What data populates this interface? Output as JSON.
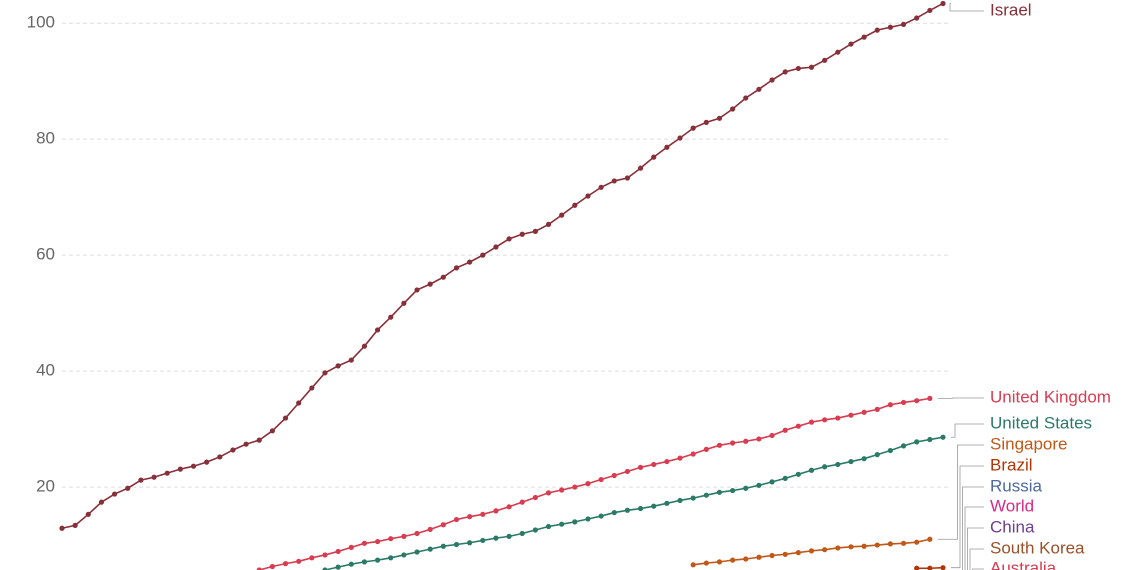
{
  "chart_data": {
    "type": "line",
    "categories": [
      null,
      null,
      null,
      null,
      null,
      null,
      null,
      null,
      null,
      null,
      null,
      null,
      null,
      null,
      null,
      null,
      null,
      null,
      null,
      null,
      null,
      null,
      null,
      null,
      null,
      null,
      null,
      null,
      null,
      null,
      null,
      null,
      null,
      null,
      null,
      null,
      null,
      null,
      null,
      null,
      null,
      null,
      null,
      null,
      null,
      null,
      null,
      null,
      null,
      null,
      null,
      null,
      null,
      null,
      null,
      null,
      null,
      null,
      null,
      null,
      null,
      null,
      null,
      null,
      null,
      null,
      null,
      null
    ],
    "ylim": [
      5.7,
      104
    ],
    "yticks": [
      20,
      40,
      60,
      80,
      100
    ],
    "grid": true,
    "series": [
      {
        "name": "Israel",
        "color": "#883039",
        "values": [
          12.9,
          13.4,
          15.3,
          17.4,
          18.8,
          19.8,
          21.2,
          21.7,
          22.4,
          23.1,
          23.6,
          24.3,
          25.2,
          26.4,
          27.4,
          28.1,
          29.7,
          31.9,
          34.5,
          37.1,
          39.7,
          40.9,
          41.9,
          44.3,
          47.1,
          49.3,
          51.7,
          54.0,
          55.0,
          56.2,
          57.8,
          58.8,
          60.0,
          61.4,
          62.8,
          63.6,
          64.1,
          65.3,
          66.9,
          68.6,
          70.2,
          71.7,
          72.8,
          73.3,
          75.0,
          76.9,
          78.6,
          80.2,
          81.9,
          82.9,
          83.6,
          85.2,
          87.1,
          88.6,
          90.2,
          91.6,
          92.2,
          92.4,
          93.6,
          95.0,
          96.4,
          97.6,
          98.8,
          99.3,
          99.8,
          100.9,
          102.2,
          103.4
        ]
      },
      {
        "name": "United Kingdom",
        "color": "#d73c50",
        "values": [
          null,
          null,
          null,
          null,
          null,
          null,
          null,
          null,
          null,
          null,
          null,
          null,
          null,
          null,
          null,
          5.7,
          6.3,
          6.8,
          7.2,
          7.8,
          8.3,
          8.9,
          9.6,
          10.3,
          10.6,
          11.1,
          11.5,
          12.0,
          12.7,
          13.5,
          14.4,
          14.9,
          15.3,
          15.9,
          16.6,
          17.4,
          18.2,
          19.0,
          19.5,
          20.0,
          20.6,
          21.3,
          22.0,
          22.7,
          23.4,
          23.9,
          24.4,
          25.0,
          25.7,
          26.5,
          27.2,
          27.6,
          27.9,
          28.3,
          28.9,
          29.8,
          30.5,
          31.2,
          31.6,
          31.9,
          32.4,
          32.9,
          33.4,
          34.2,
          34.6,
          34.9,
          35.3,
          null
        ]
      },
      {
        "name": "United States",
        "color": "#2b7a68",
        "values": [
          null,
          null,
          null,
          null,
          null,
          null,
          null,
          null,
          null,
          null,
          null,
          null,
          null,
          null,
          null,
          null,
          null,
          null,
          null,
          null,
          5.7,
          6.2,
          6.7,
          7.1,
          7.4,
          7.8,
          8.3,
          8.8,
          9.3,
          9.8,
          10.1,
          10.4,
          10.8,
          11.2,
          11.5,
          12.0,
          12.6,
          13.2,
          13.6,
          14.0,
          14.5,
          15.0,
          15.6,
          16.0,
          16.3,
          16.7,
          17.2,
          17.7,
          18.1,
          18.6,
          19.1,
          19.4,
          19.8,
          20.3,
          20.9,
          21.5,
          22.2,
          22.9,
          23.5,
          23.9,
          24.4,
          24.9,
          25.6,
          26.3,
          27.1,
          27.8,
          28.2,
          28.6
        ]
      },
      {
        "name": "Singapore",
        "color": "#c05917",
        "values": [
          null,
          null,
          null,
          null,
          null,
          null,
          null,
          null,
          null,
          null,
          null,
          null,
          null,
          null,
          null,
          null,
          null,
          null,
          null,
          null,
          null,
          null,
          null,
          null,
          null,
          null,
          null,
          null,
          null,
          null,
          null,
          null,
          null,
          null,
          null,
          null,
          null,
          null,
          null,
          null,
          null,
          null,
          null,
          null,
          null,
          null,
          null,
          null,
          6.6,
          6.9,
          7.1,
          7.4,
          7.6,
          7.9,
          8.2,
          8.4,
          8.7,
          9.0,
          9.2,
          9.5,
          9.7,
          9.8,
          10.0,
          10.2,
          10.3,
          10.5,
          11.0,
          null
        ]
      },
      {
        "name": "Brazil",
        "color": "#b13507",
        "values": [
          null,
          null,
          null,
          null,
          null,
          null,
          null,
          null,
          null,
          null,
          null,
          null,
          null,
          null,
          null,
          null,
          null,
          null,
          null,
          null,
          null,
          null,
          null,
          null,
          null,
          null,
          null,
          null,
          null,
          null,
          null,
          null,
          null,
          null,
          null,
          null,
          null,
          null,
          null,
          null,
          null,
          null,
          null,
          null,
          null,
          null,
          null,
          null,
          null,
          null,
          null,
          null,
          null,
          null,
          null,
          null,
          null,
          null,
          null,
          null,
          null,
          null,
          null,
          null,
          null,
          6.0,
          6.0,
          6.1
        ]
      },
      {
        "name": "Russia",
        "color": "#4c6a9c",
        "values": [
          null,
          null,
          null,
          null,
          null,
          null,
          null,
          null,
          null,
          null,
          null,
          null,
          null,
          null,
          null,
          null,
          null,
          null,
          null,
          null,
          null,
          null,
          null,
          null,
          null,
          null,
          null,
          null,
          null,
          null,
          null,
          null,
          null,
          null,
          null,
          null,
          null,
          null,
          null,
          null,
          null,
          null,
          null,
          null,
          null,
          null,
          null,
          null,
          null,
          null,
          null,
          null,
          null,
          null,
          null,
          null,
          null,
          null,
          null,
          null,
          null,
          null,
          null,
          null,
          null,
          null,
          null,
          null
        ]
      },
      {
        "name": "World",
        "color": "#d62b86",
        "values": [
          null,
          null,
          null,
          null,
          null,
          null,
          null,
          null,
          null,
          null,
          null,
          null,
          null,
          null,
          null,
          null,
          null,
          null,
          null,
          null,
          null,
          null,
          null,
          null,
          null,
          null,
          null,
          null,
          null,
          null,
          null,
          null,
          null,
          null,
          null,
          null,
          null,
          null,
          null,
          null,
          null,
          null,
          null,
          null,
          null,
          null,
          null,
          null,
          null,
          null,
          null,
          null,
          null,
          null,
          null,
          null,
          null,
          null,
          null,
          null,
          null,
          null,
          null,
          null,
          null,
          null,
          null,
          null
        ]
      },
      {
        "name": "China",
        "color": "#6d3e91",
        "values": [
          null,
          null,
          null,
          null,
          null,
          null,
          null,
          null,
          null,
          null,
          null,
          null,
          null,
          null,
          null,
          null,
          null,
          null,
          null,
          null,
          null,
          null,
          null,
          null,
          null,
          null,
          null,
          null,
          null,
          null,
          null,
          null,
          null,
          null,
          null,
          null,
          null,
          null,
          null,
          null,
          null,
          null,
          null,
          null,
          null,
          null,
          null,
          null,
          null,
          null,
          null,
          null,
          null,
          null,
          null,
          null,
          null,
          null,
          null,
          null,
          null,
          null,
          null,
          null,
          null,
          null,
          null,
          null
        ]
      },
      {
        "name": "South Korea",
        "color": "#9a5129",
        "values": [
          null,
          null,
          null,
          null,
          null,
          null,
          null,
          null,
          null,
          null,
          null,
          null,
          null,
          null,
          null,
          null,
          null,
          null,
          null,
          null,
          null,
          null,
          null,
          null,
          null,
          null,
          null,
          null,
          null,
          null,
          null,
          null,
          null,
          null,
          null,
          null,
          null,
          null,
          null,
          null,
          null,
          null,
          null,
          null,
          null,
          null,
          null,
          null,
          null,
          null,
          null,
          null,
          null,
          null,
          null,
          null,
          null,
          null,
          null,
          null,
          null,
          null,
          null,
          null,
          null,
          null,
          null,
          null
        ]
      },
      {
        "name": "Australia",
        "color": "#d73c50",
        "values": [
          null,
          null,
          null,
          null,
          null,
          null,
          null,
          null,
          null,
          null,
          null,
          null,
          null,
          null,
          null,
          null,
          null,
          null,
          null,
          null,
          null,
          null,
          null,
          null,
          null,
          null,
          null,
          null,
          null,
          null,
          null,
          null,
          null,
          null,
          null,
          null,
          null,
          null,
          null,
          null,
          null,
          null,
          null,
          null,
          null,
          null,
          null,
          null,
          null,
          null,
          null,
          null,
          null,
          null,
          null,
          null,
          null,
          null,
          null,
          null,
          null,
          null,
          null,
          null,
          null,
          null,
          null,
          null
        ]
      }
    ]
  }
}
